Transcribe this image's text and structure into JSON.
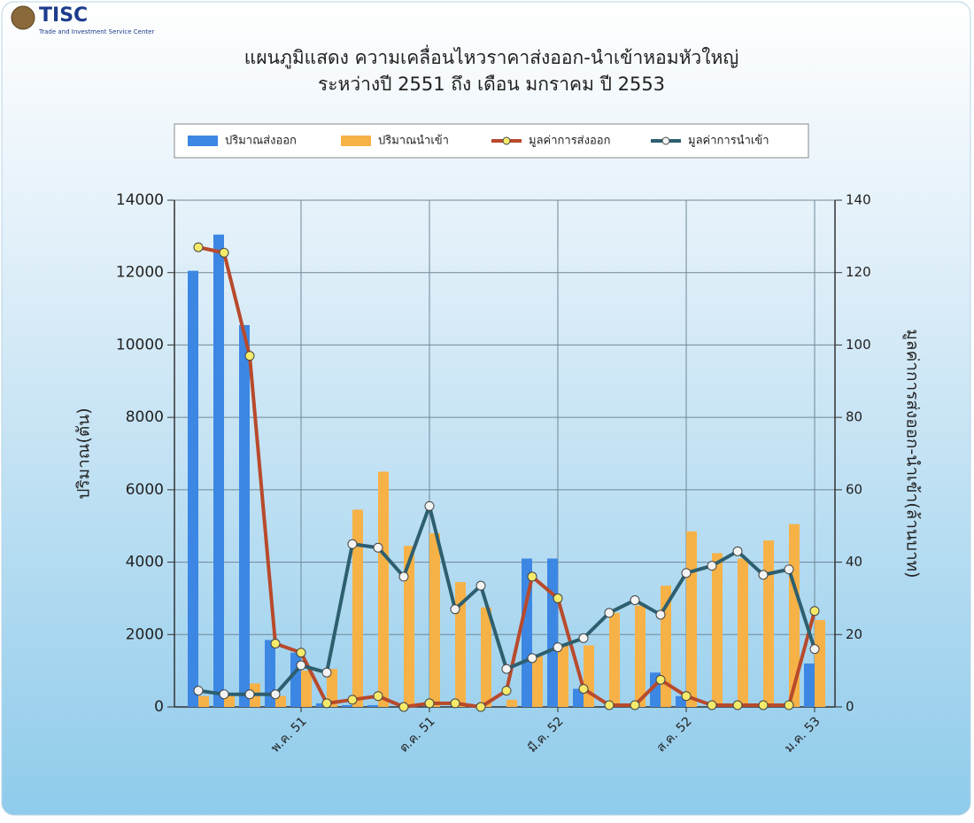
{
  "header": {
    "logo": "TISC",
    "logo_subtitle": "Trade and Investment Service Center"
  },
  "chart_data": {
    "type": "combo",
    "title": "แผนภูมิแสดง ความเคลื่อนไหวราคาส่งออก-นำเข้าหอมหัวใหญ่",
    "subtitle": "ระหว่างปี 2551 ถึง  เดือน มกราคม ปี 2553",
    "y_label": "ปริมาณ(ตัน)",
    "y2_label": "มูลค่าการส่งออก-นำเข้า(ล้านบาท)",
    "categories": [
      null,
      null,
      null,
      null,
      "พ.ค. 51",
      null,
      null,
      null,
      null,
      "ต.ค. 51",
      null,
      null,
      null,
      null,
      "มี.ค. 52",
      null,
      null,
      null,
      null,
      "ส.ค. 52",
      null,
      null,
      null,
      null,
      "ม.ค. 53"
    ],
    "series": [
      {
        "name": "ปริมาณส่งออก",
        "type": "bar",
        "color": "#3d87e4",
        "values": [
          12050,
          13050,
          10550,
          1850,
          1500,
          100,
          50,
          50,
          0,
          0,
          0,
          0,
          0,
          4100,
          4100,
          500,
          0,
          0,
          950,
          300,
          0,
          0,
          0,
          0,
          1200
        ]
      },
      {
        "name": "ปริมาณนำเข้า",
        "type": "bar",
        "color": "#f6b247",
        "values": [
          300,
          300,
          650,
          300,
          1000,
          1050,
          5450,
          6500,
          4450,
          4800,
          3450,
          2750,
          200,
          1400,
          1700,
          1700,
          2600,
          2800,
          3350,
          4850,
          4250,
          4100,
          4600,
          5050,
          2400
        ]
      },
      {
        "name": "มูลค่าการส่งออก",
        "type": "line",
        "axis": "y2",
        "color": "#b84a2c",
        "values": [
          127,
          125.5,
          97,
          17.5,
          15,
          1,
          2,
          3,
          0,
          1,
          1,
          0,
          4.5,
          36,
          30,
          5,
          0.5,
          0.5,
          7.5,
          3,
          0.5,
          0.5,
          0.5,
          0.5,
          26.5
        ]
      },
      {
        "name": "มูลค่าการนำเข้า",
        "type": "line",
        "axis": "y2",
        "color": "#2d5f6f",
        "values": [
          4.5,
          3.5,
          3.5,
          3.5,
          11.5,
          9.5,
          45,
          44,
          36,
          55.5,
          27,
          33.5,
          10.5,
          13.5,
          16.5,
          19,
          26,
          29.5,
          25.5,
          37,
          39,
          43,
          36.5,
          38,
          16
        ]
      }
    ],
    "ylim": [
      0,
      14000
    ],
    "yticks": [
      0,
      2000,
      4000,
      6000,
      8000,
      10000,
      12000,
      14000
    ],
    "y2lim": [
      0,
      140
    ],
    "y2ticks": [
      0,
      20,
      40,
      60,
      80,
      100,
      120,
      140
    ],
    "grid": true
  }
}
